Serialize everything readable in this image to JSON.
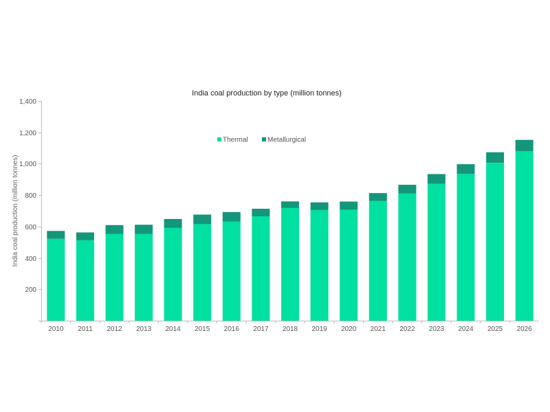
{
  "chart_data": {
    "type": "bar",
    "stacked": true,
    "title": "India coal production by type (million tonnes)",
    "xlabel": "",
    "ylabel": "India coal production (million tonnes)",
    "ylim": [
      0,
      1400
    ],
    "yticks": [
      0,
      200,
      400,
      600,
      800,
      1000,
      1200,
      1400
    ],
    "ytick_labels": [
      "",
      "200",
      "400",
      "600",
      "800",
      "1,000",
      "1,200",
      "1,400"
    ],
    "grid": false,
    "legend_position": "top-center",
    "categories": [
      "2010",
      "2011",
      "2012",
      "2013",
      "2014",
      "2015",
      "2016",
      "2017",
      "2018",
      "2019",
      "2020",
      "2021",
      "2022",
      "2023",
      "2024",
      "2025",
      "2026"
    ],
    "series": [
      {
        "name": "Thermal",
        "color": "#00E0A0",
        "values": [
          522,
          512,
          552,
          552,
          591,
          615,
          632,
          665,
          718,
          705,
          707,
          763,
          810,
          872,
          935,
          1005,
          1080
        ]
      },
      {
        "name": "Metallurgical",
        "color": "#13967A",
        "values": [
          50,
          50,
          57,
          59,
          57,
          61,
          60,
          48,
          42,
          49,
          52,
          50,
          56,
          62,
          62,
          68,
          72
        ]
      }
    ]
  }
}
